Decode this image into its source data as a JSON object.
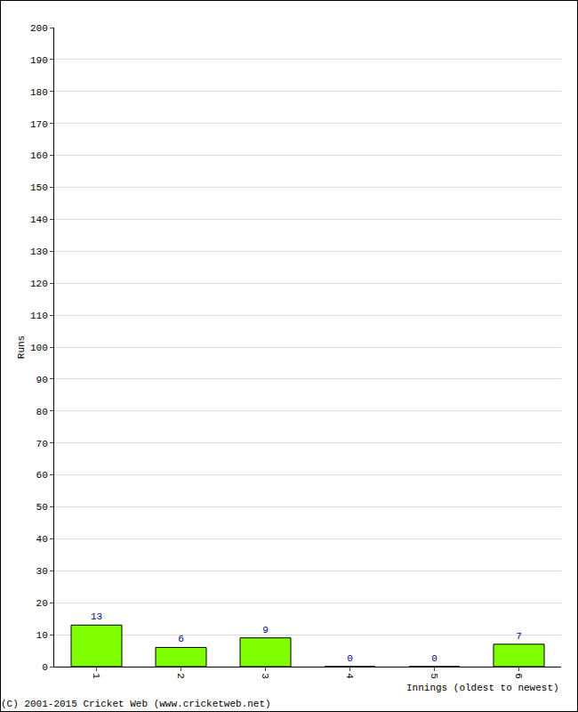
{
  "chart_data": {
    "type": "bar",
    "categories": [
      "1",
      "2",
      "3",
      "4",
      "5",
      "6"
    ],
    "values": [
      13,
      6,
      9,
      0,
      0,
      7
    ],
    "color": "#7fff00",
    "x_label": "Innings (oldest to newest)",
    "y_label": "Runs",
    "annotations": [
      "(C) 2001-2015 Cricket Web (www.cricketweb.net)"
    ],
    "ylim": [
      0,
      200
    ],
    "yticks": [
      0,
      10,
      20,
      30,
      40,
      50,
      60,
      70,
      80,
      90,
      100,
      110,
      120,
      130,
      140,
      150,
      160,
      170,
      180,
      190,
      200
    ],
    "grid": true,
    "data_labels": true
  }
}
